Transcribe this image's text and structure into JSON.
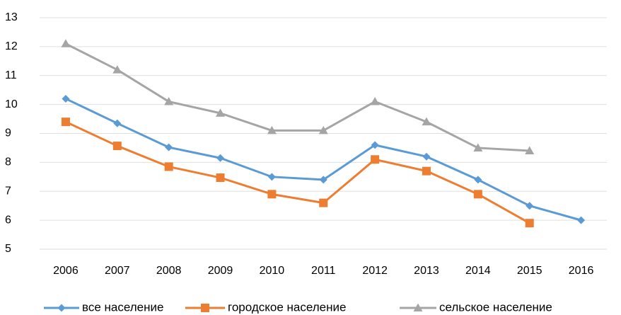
{
  "chart_data": {
    "type": "line",
    "categories": [
      "2006",
      "2007",
      "2008",
      "2009",
      "2010",
      "2011",
      "2012",
      "2013",
      "2014",
      "2015",
      "2016"
    ],
    "series": [
      {
        "name": "все население",
        "color": "#5b9bd5",
        "marker": "diamond",
        "values": [
          10.2,
          9.35,
          8.52,
          8.15,
          7.5,
          7.4,
          8.6,
          8.2,
          7.4,
          6.5,
          6.0
        ]
      },
      {
        "name": "городское население",
        "color": "#ed7d31",
        "marker": "square",
        "values": [
          9.4,
          8.57,
          7.85,
          7.47,
          6.9,
          6.6,
          8.1,
          7.7,
          6.9,
          5.9,
          null
        ]
      },
      {
        "name": "сельское население",
        "color": "#a5a5a5",
        "marker": "triangle",
        "values": [
          12.1,
          11.2,
          10.1,
          9.7,
          9.1,
          9.1,
          10.1,
          9.4,
          8.5,
          8.4,
          null
        ]
      }
    ],
    "ylim": [
      5,
      13
    ],
    "yticks": [
      5,
      6,
      7,
      8,
      9,
      10,
      11,
      12,
      13
    ],
    "grid": true,
    "legend": "bottom"
  }
}
